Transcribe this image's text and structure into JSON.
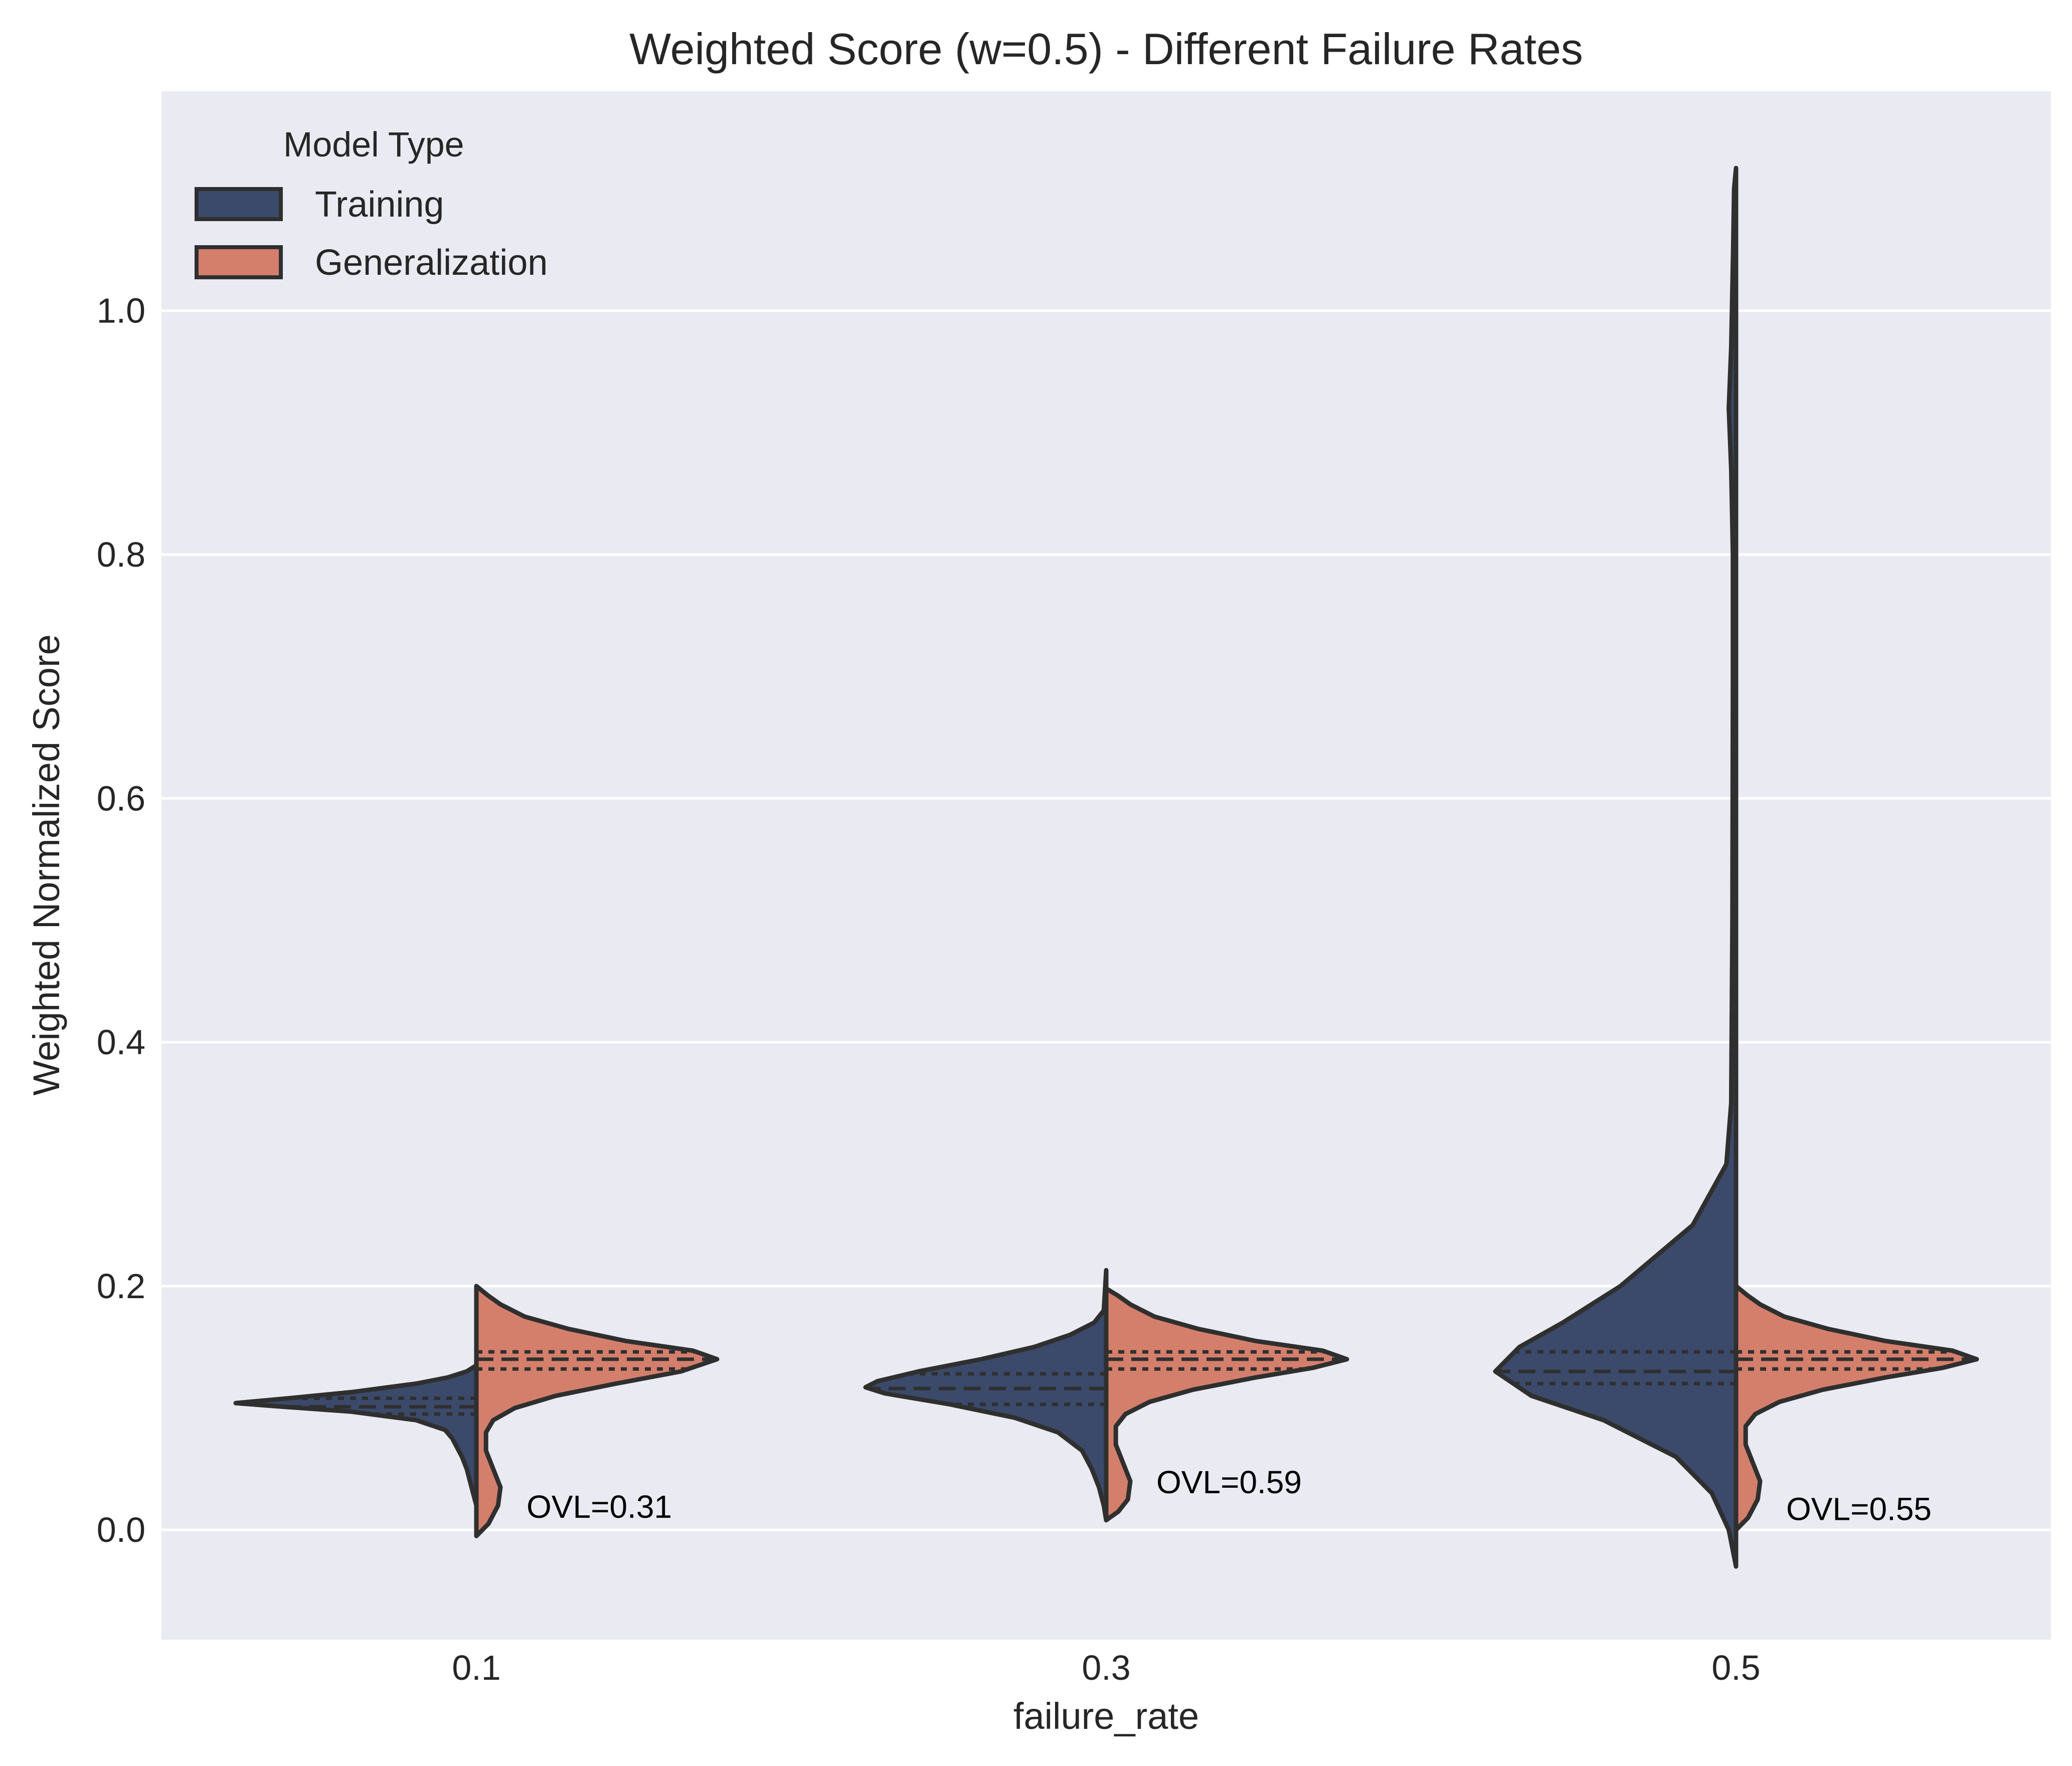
{
  "chart_data": {
    "type": "violin",
    "title": "Weighted Score (w=0.5) - Different Failure Rates",
    "xlabel": "failure_rate",
    "ylabel": "Weighted Normalized Score",
    "categories": [
      "0.1",
      "0.3",
      "0.5"
    ],
    "ylim": [
      -0.09,
      1.18
    ],
    "yticks": [
      0.0,
      0.2,
      0.4,
      0.6,
      0.8,
      1.0
    ],
    "ytick_labels": [
      "0.0",
      "0.2",
      "0.4",
      "0.6",
      "0.8",
      "1.0"
    ],
    "grid": true,
    "split": true,
    "legend": {
      "title": "Model Type",
      "position": "top-left",
      "entries": [
        "Training",
        "Generalization"
      ]
    },
    "colors": {
      "Training": "#3b4a6b",
      "Generalization": "#d47f6c",
      "outline": "#2f2f2f",
      "background": "#eaeaf2",
      "grid": "#ffffff"
    },
    "series": [
      {
        "name": "Training",
        "side": "left",
        "groups": [
          {
            "category": "0.1",
            "quartiles": [
              0.095,
              0.101,
              0.108
            ],
            "profile": [
              [
                0.02,
                0
              ],
              [
                0.035,
                0.02
              ],
              [
                0.05,
                0.04
              ],
              [
                0.06,
                0.06
              ],
              [
                0.075,
                0.1
              ],
              [
                0.082,
                0.13
              ],
              [
                0.09,
                0.25
              ],
              [
                0.097,
                0.52
              ],
              [
                0.101,
                0.8
              ],
              [
                0.104,
                1.0
              ],
              [
                0.108,
                0.78
              ],
              [
                0.113,
                0.52
              ],
              [
                0.12,
                0.25
              ],
              [
                0.125,
                0.12
              ],
              [
                0.13,
                0.04
              ],
              [
                0.135,
                0
              ]
            ]
          },
          {
            "category": "0.3",
            "quartiles": [
              0.103,
              0.116,
              0.128
            ],
            "profile": [
              [
                0.008,
                0
              ],
              [
                0.02,
                0.01
              ],
              [
                0.035,
                0.03
              ],
              [
                0.05,
                0.06
              ],
              [
                0.065,
                0.1
              ],
              [
                0.08,
                0.2
              ],
              [
                0.092,
                0.38
              ],
              [
                0.103,
                0.65
              ],
              [
                0.112,
                0.92
              ],
              [
                0.117,
                1.0
              ],
              [
                0.122,
                0.95
              ],
              [
                0.13,
                0.78
              ],
              [
                0.14,
                0.52
              ],
              [
                0.15,
                0.3
              ],
              [
                0.16,
                0.15
              ],
              [
                0.17,
                0.05
              ],
              [
                0.18,
                0.01
              ],
              [
                0.213,
                0
              ]
            ]
          },
          {
            "category": "0.5",
            "quartiles": [
              0.12,
              0.13,
              0.146
            ],
            "profile": [
              [
                -0.03,
                0
              ],
              [
                0.0,
                0.03
              ],
              [
                0.03,
                0.1
              ],
              [
                0.06,
                0.25
              ],
              [
                0.09,
                0.55
              ],
              [
                0.11,
                0.85
              ],
              [
                0.13,
                1.0
              ],
              [
                0.15,
                0.9
              ],
              [
                0.17,
                0.72
              ],
              [
                0.2,
                0.48
              ],
              [
                0.25,
                0.18
              ],
              [
                0.3,
                0.04
              ],
              [
                0.35,
                0.02
              ],
              [
                0.5,
                0.015
              ],
              [
                0.7,
                0.013
              ],
              [
                0.8,
                0.013
              ],
              [
                0.87,
                0.02
              ],
              [
                0.92,
                0.03
              ],
              [
                0.97,
                0.02
              ],
              [
                1.05,
                0.012
              ],
              [
                1.1,
                0.008
              ],
              [
                1.117,
                0
              ]
            ]
          }
        ]
      },
      {
        "name": "Generalization",
        "side": "right",
        "groups": [
          {
            "category": "0.1",
            "quartiles": [
              0.132,
              0.14,
              0.146
            ],
            "profile": [
              [
                -0.005,
                0
              ],
              [
                0.005,
                0.05
              ],
              [
                0.02,
                0.09
              ],
              [
                0.035,
                0.1
              ],
              [
                0.05,
                0.07
              ],
              [
                0.065,
                0.04
              ],
              [
                0.08,
                0.04
              ],
              [
                0.09,
                0.07
              ],
              [
                0.1,
                0.16
              ],
              [
                0.11,
                0.33
              ],
              [
                0.12,
                0.58
              ],
              [
                0.13,
                0.85
              ],
              [
                0.14,
                1.0
              ],
              [
                0.147,
                0.9
              ],
              [
                0.155,
                0.62
              ],
              [
                0.165,
                0.38
              ],
              [
                0.175,
                0.2
              ],
              [
                0.185,
                0.1
              ],
              [
                0.192,
                0.05
              ],
              [
                0.2,
                0
              ]
            ]
          },
          {
            "category": "0.3",
            "quartiles": [
              0.132,
              0.14,
              0.146
            ],
            "profile": [
              [
                0.008,
                0
              ],
              [
                0.015,
                0.05
              ],
              [
                0.025,
                0.09
              ],
              [
                0.04,
                0.1
              ],
              [
                0.055,
                0.07
              ],
              [
                0.07,
                0.04
              ],
              [
                0.085,
                0.04
              ],
              [
                0.095,
                0.08
              ],
              [
                0.105,
                0.18
              ],
              [
                0.115,
                0.36
              ],
              [
                0.125,
                0.62
              ],
              [
                0.133,
                0.86
              ],
              [
                0.14,
                1.0
              ],
              [
                0.147,
                0.9
              ],
              [
                0.155,
                0.62
              ],
              [
                0.165,
                0.38
              ],
              [
                0.175,
                0.2
              ],
              [
                0.185,
                0.1
              ],
              [
                0.192,
                0.05
              ],
              [
                0.198,
                0
              ]
            ]
          },
          {
            "category": "0.5",
            "quartiles": [
              0.132,
              0.14,
              0.146
            ],
            "profile": [
              [
                0.0,
                0
              ],
              [
                0.01,
                0.05
              ],
              [
                0.025,
                0.09
              ],
              [
                0.04,
                0.1
              ],
              [
                0.055,
                0.07
              ],
              [
                0.07,
                0.04
              ],
              [
                0.085,
                0.04
              ],
              [
                0.095,
                0.08
              ],
              [
                0.105,
                0.18
              ],
              [
                0.115,
                0.36
              ],
              [
                0.125,
                0.62
              ],
              [
                0.133,
                0.86
              ],
              [
                0.14,
                1.0
              ],
              [
                0.147,
                0.9
              ],
              [
                0.155,
                0.62
              ],
              [
                0.165,
                0.38
              ],
              [
                0.175,
                0.2
              ],
              [
                0.185,
                0.1
              ],
              [
                0.192,
                0.05
              ],
              [
                0.2,
                0
              ]
            ]
          }
        ]
      }
    ],
    "annotations": [
      {
        "category": "0.1",
        "text": "OVL=0.31",
        "y": 0.01
      },
      {
        "category": "0.3",
        "text": "OVL=0.59",
        "y": 0.03
      },
      {
        "category": "0.5",
        "text": "OVL=0.55",
        "y": 0.008
      }
    ]
  }
}
